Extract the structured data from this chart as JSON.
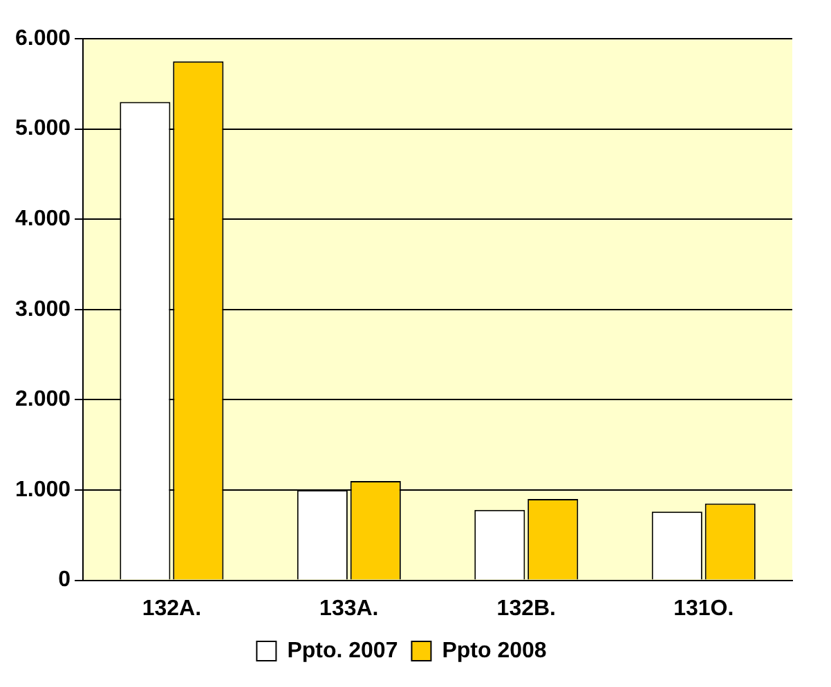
{
  "chart_data": {
    "type": "bar",
    "categories": [
      "132A.",
      "133A.",
      "132B.",
      "131O."
    ],
    "series": [
      {
        "name": "Ppto. 2007",
        "color": "#ffffff",
        "values": [
          5300,
          1000,
          780,
          760
        ]
      },
      {
        "name": "Ppto 2008",
        "color": "#ffcc00",
        "values": [
          5750,
          1100,
          900,
          850
        ]
      }
    ],
    "ylim": [
      0,
      6000
    ],
    "yticks": [
      {
        "value": 0,
        "label": "0"
      },
      {
        "value": 1000,
        "label": "1.000"
      },
      {
        "value": 2000,
        "label": "2.000"
      },
      {
        "value": 3000,
        "label": "3.000"
      },
      {
        "value": 4000,
        "label": "4.000"
      },
      {
        "value": 5000,
        "label": "5.000"
      },
      {
        "value": 6000,
        "label": "6.000"
      }
    ],
    "grid": "y",
    "legend": "bottom"
  }
}
